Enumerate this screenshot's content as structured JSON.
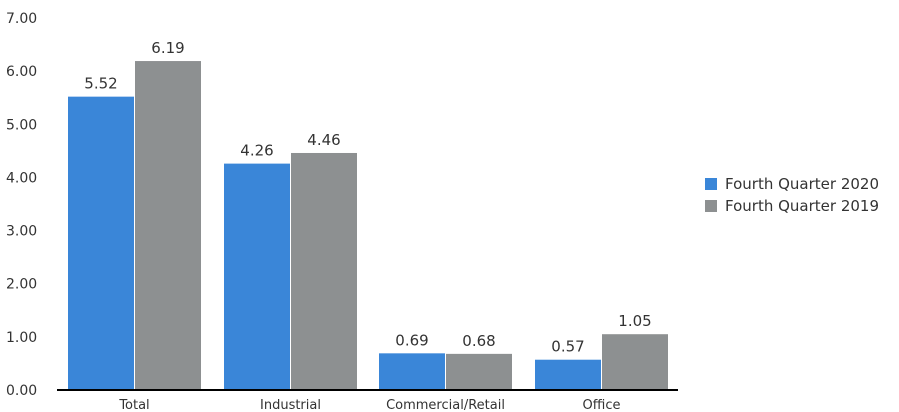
{
  "chart_data": {
    "type": "bar",
    "categories": [
      "Total",
      "Industrial",
      "Commercial/Retail",
      "Office"
    ],
    "series": [
      {
        "name": "Fourth Quarter 2020",
        "color": "#3a86d8",
        "values": [
          5.52,
          4.26,
          0.69,
          0.57
        ]
      },
      {
        "name": "Fourth Quarter 2019",
        "color": "#8d9091",
        "values": [
          6.19,
          4.46,
          0.68,
          1.05
        ]
      }
    ],
    "y_ticks": [
      "0.00",
      "1.00",
      "2.00",
      "3.00",
      "4.00",
      "5.00",
      "6.00",
      "7.00"
    ],
    "ylim": [
      0,
      7
    ],
    "grid": false,
    "legend": "right",
    "data_label_decimals": 2
  }
}
